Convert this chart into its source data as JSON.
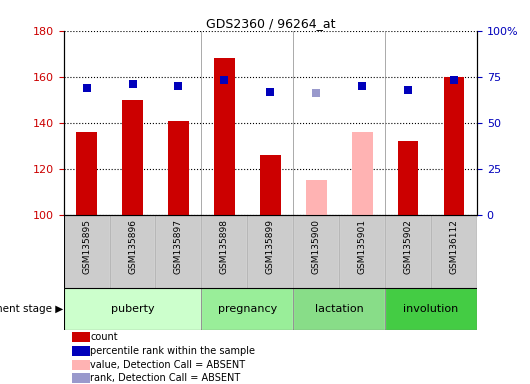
{
  "title": "GDS2360 / 96264_at",
  "samples": [
    "GSM135895",
    "GSM135896",
    "GSM135897",
    "GSM135898",
    "GSM135899",
    "GSM135900",
    "GSM135901",
    "GSM135902",
    "GSM136112"
  ],
  "bar_values": [
    136,
    150,
    141,
    168,
    126,
    115,
    136,
    132,
    160
  ],
  "bar_colors": [
    "#cc0000",
    "#cc0000",
    "#cc0000",
    "#cc0000",
    "#cc0000",
    "#ffb3b3",
    "#ffb3b3",
    "#cc0000",
    "#cc0000"
  ],
  "rank_values": [
    69,
    71,
    70,
    73,
    67,
    66,
    70,
    68,
    73
  ],
  "rank_colors": [
    "#0000bb",
    "#0000bb",
    "#0000bb",
    "#0000bb",
    "#0000bb",
    "#9999cc",
    "#0000bb",
    "#0000bb",
    "#0000bb"
  ],
  "ylim_left": [
    100,
    180
  ],
  "ylim_right": [
    0,
    100
  ],
  "yticks_left": [
    100,
    120,
    140,
    160,
    180
  ],
  "ytick_labels_left": [
    "100",
    "120",
    "140",
    "160",
    "180"
  ],
  "ytick_labels_right": [
    "0",
    "25",
    "50",
    "75",
    "100%"
  ],
  "groups": [
    {
      "label": "puberty",
      "start": 0,
      "end": 3,
      "color": "#ccffcc"
    },
    {
      "label": "pregnancy",
      "start": 3,
      "end": 5,
      "color": "#99ee99"
    },
    {
      "label": "lactation",
      "start": 5,
      "end": 7,
      "color": "#88dd88"
    },
    {
      "label": "involution",
      "start": 7,
      "end": 9,
      "color": "#44cc44"
    }
  ],
  "stage_label": "development stage",
  "legend_items": [
    {
      "label": "count",
      "color": "#cc0000"
    },
    {
      "label": "percentile rank within the sample",
      "color": "#0000bb"
    },
    {
      "label": "value, Detection Call = ABSENT",
      "color": "#ffb3b3"
    },
    {
      "label": "rank, Detection Call = ABSENT",
      "color": "#9999cc"
    }
  ],
  "bar_width": 0.45,
  "dot_size": 40,
  "left_axis_color": "#cc0000",
  "right_axis_color": "#0000bb",
  "sample_box_color": "#cccccc",
  "fig_width": 5.3,
  "fig_height": 3.84
}
